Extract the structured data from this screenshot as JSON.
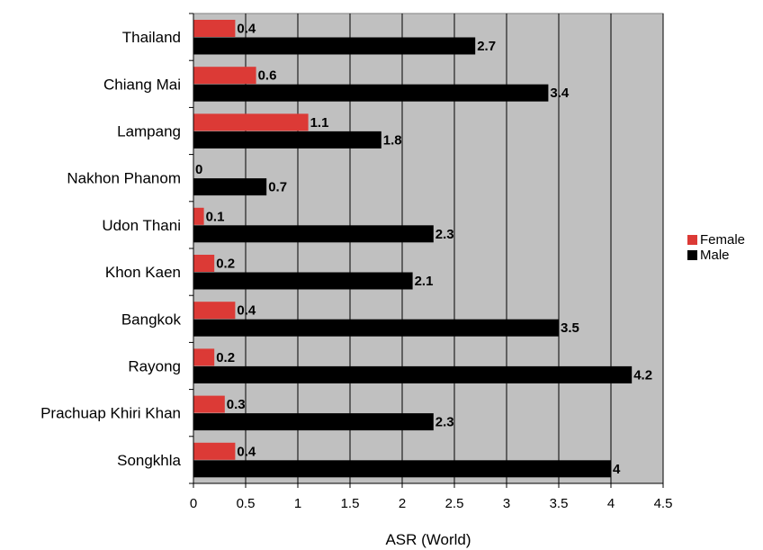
{
  "chart_data": {
    "type": "bar",
    "orientation": "horizontal",
    "categories": [
      "Thailand",
      "Chiang Mai",
      "Lampang",
      "Nakhon Phanom",
      "Udon Thani",
      "Khon Kaen",
      "Bangkok",
      "Rayong",
      "Prachuap Khiri Khan",
      "Songkhla"
    ],
    "series": [
      {
        "name": "Female",
        "color": "#dc3a36",
        "values": [
          0.4,
          0.6,
          1.1,
          0,
          0.1,
          0.2,
          0.4,
          0.2,
          0.3,
          0.4
        ],
        "value_labels": [
          "0.4",
          "0.6",
          "1.1",
          "0",
          "0.1",
          "0.2",
          "0.4",
          "0.2",
          "0.3",
          "0.4"
        ]
      },
      {
        "name": "Male",
        "color": "#000000",
        "values": [
          2.7,
          3.4,
          1.8,
          0.7,
          2.3,
          2.1,
          3.5,
          4.2,
          2.3,
          4
        ],
        "value_labels": [
          "2.7",
          "3.4",
          "1.8",
          "0.7",
          "2.3",
          "2.1",
          "3.5",
          "4.2",
          "2.3",
          "4"
        ]
      }
    ],
    "xlabel": "ASR (World)",
    "ylabel": "",
    "title": "",
    "xlim": [
      0,
      4.5
    ],
    "x_ticks": [
      0,
      0.5,
      1,
      1.5,
      2,
      2.5,
      3,
      3.5,
      4,
      4.5
    ],
    "x_tick_labels": [
      "0",
      "0.5",
      "1",
      "1.5",
      "2",
      "2.5",
      "3",
      "3.5",
      "4",
      "4.5"
    ],
    "grid": true,
    "plot_background": "#c0c0c0",
    "legend_position": "right"
  }
}
